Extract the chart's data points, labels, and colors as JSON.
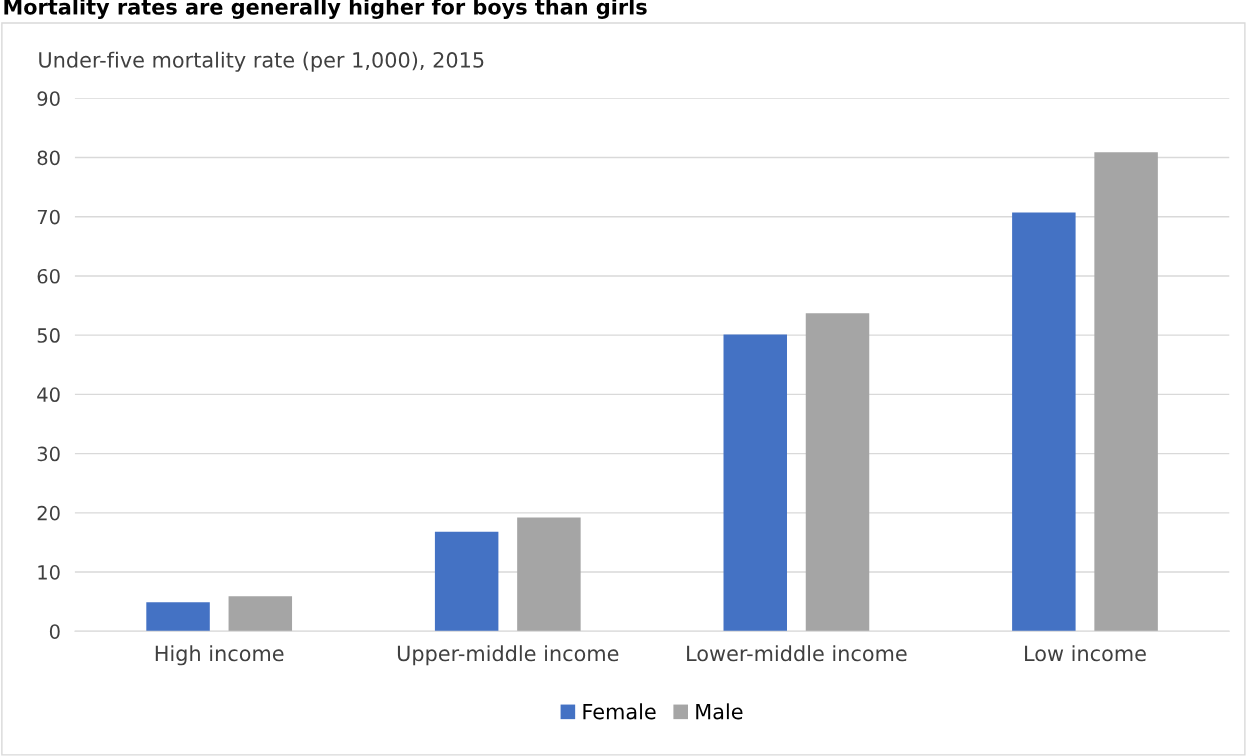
{
  "chart_data": {
    "type": "bar",
    "title": "Mortality rates are generally higher for boys than girls",
    "ylabel": "Under-five mortality rate (per 1,000), 2015",
    "categories": [
      "High income",
      "Upper-middle income",
      "Lower-middle income",
      "Low income"
    ],
    "series": [
      {
        "name": "Female",
        "color": "#4472c4",
        "values": [
          4.9,
          16.8,
          50.1,
          70.7
        ]
      },
      {
        "name": "Male",
        "color": "#a5a5a5",
        "values": [
          5.9,
          19.2,
          53.7,
          80.9
        ]
      }
    ],
    "ylim": [
      0,
      90
    ],
    "yticks": [
      0,
      10,
      20,
      30,
      40,
      50,
      60,
      70,
      80,
      90
    ],
    "grid": "y",
    "legend": "bottom"
  }
}
